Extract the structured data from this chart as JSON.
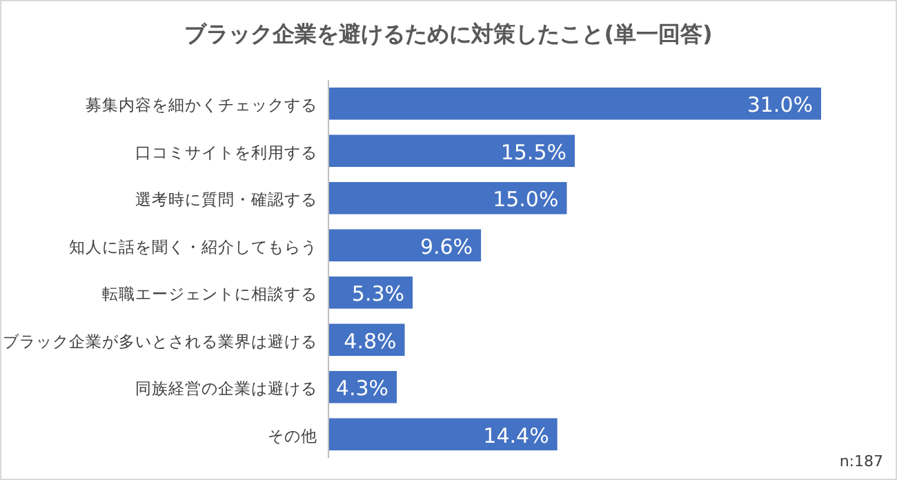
{
  "chart_data": {
    "type": "bar",
    "orientation": "horizontal",
    "title": "ブラック企業を避けるために対策したこと(単一回答)",
    "categories": [
      "募集内容を細かくチェックする",
      "口コミサイトを利用する",
      "選考時に質問・確認する",
      "知人に話を聞く・紹介してもらう",
      "転職エージェントに相談する",
      "ブラック企業が多いとされる業界は避ける",
      "同族経営の企業は避ける",
      "その他"
    ],
    "values": [
      31.0,
      15.5,
      15.0,
      9.6,
      5.3,
      4.8,
      4.3,
      14.4
    ],
    "value_labels": [
      "31.0%",
      "15.5%",
      "15.0%",
      "9.6%",
      "5.3%",
      "4.8%",
      "4.3%",
      "14.4%"
    ],
    "color": "#4472c4",
    "annotations": [
      "n:187"
    ]
  }
}
